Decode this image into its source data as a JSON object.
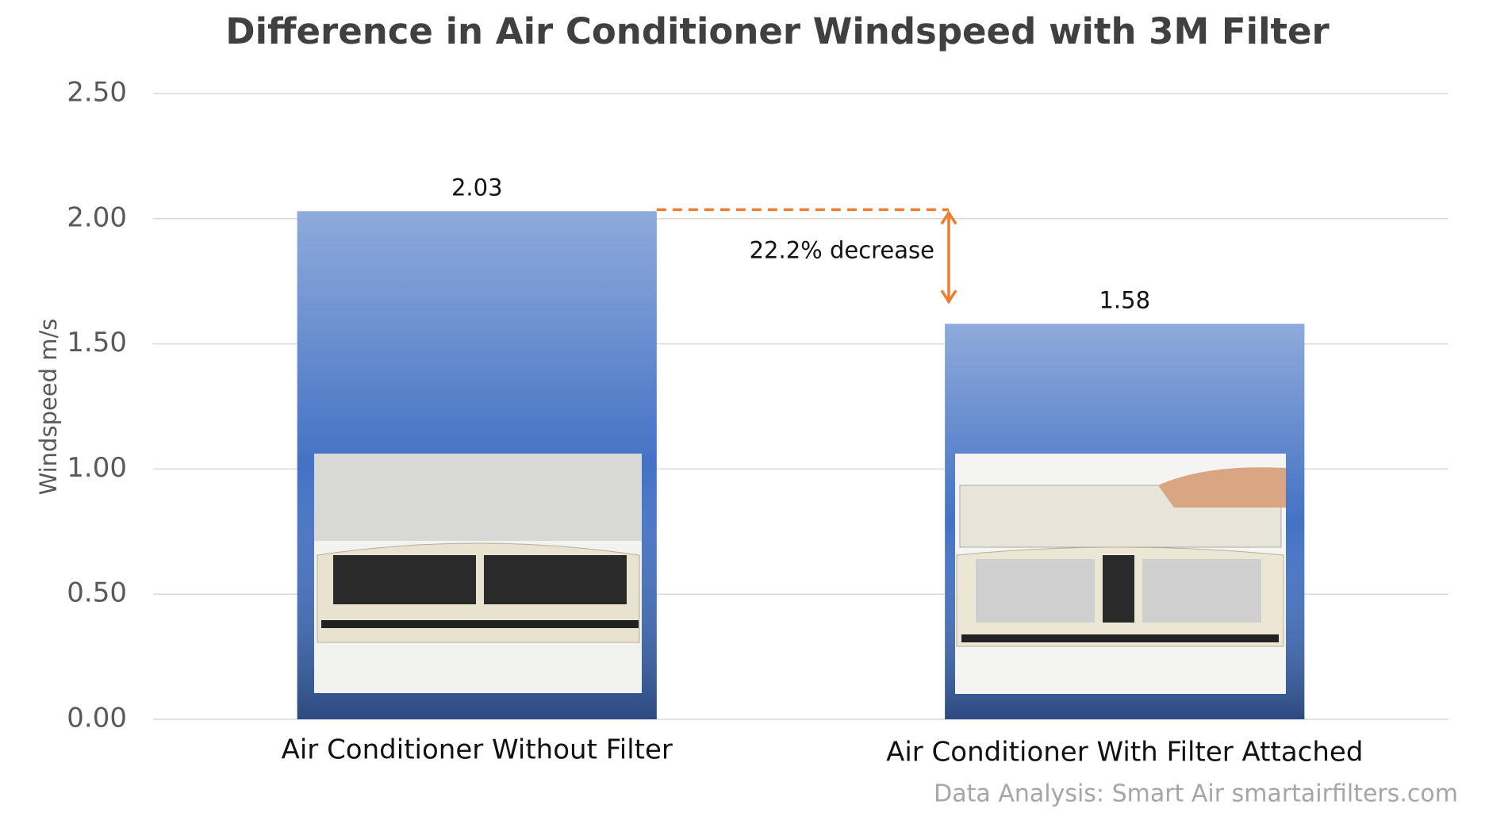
{
  "chart_data": {
    "type": "bar",
    "title": "Difference in Air Conditioner Windspeed with 3M Filter",
    "y_label": "Windspeed m/s",
    "categories": [
      "Air Conditioner Without Filter",
      "Air Conditioner With Filter Attached"
    ],
    "values": [
      2.03,
      1.58
    ],
    "color": "#4472c4",
    "ylim": [
      0,
      2.5
    ],
    "yticks": [
      {
        "value": 0,
        "label": "0.00"
      },
      {
        "value": 0.5,
        "label": "0.50"
      },
      {
        "value": 1,
        "label": "1.00"
      },
      {
        "value": 1.5,
        "label": "1.50"
      },
      {
        "value": 2,
        "label": "2.00"
      },
      {
        "value": 2.5,
        "label": "2.50"
      }
    ],
    "grid": true,
    "annotation": "22.2% decrease",
    "annotation_color": "#ed7d31",
    "source": "Data Analysis: Smart Air smartairfilters.com"
  }
}
